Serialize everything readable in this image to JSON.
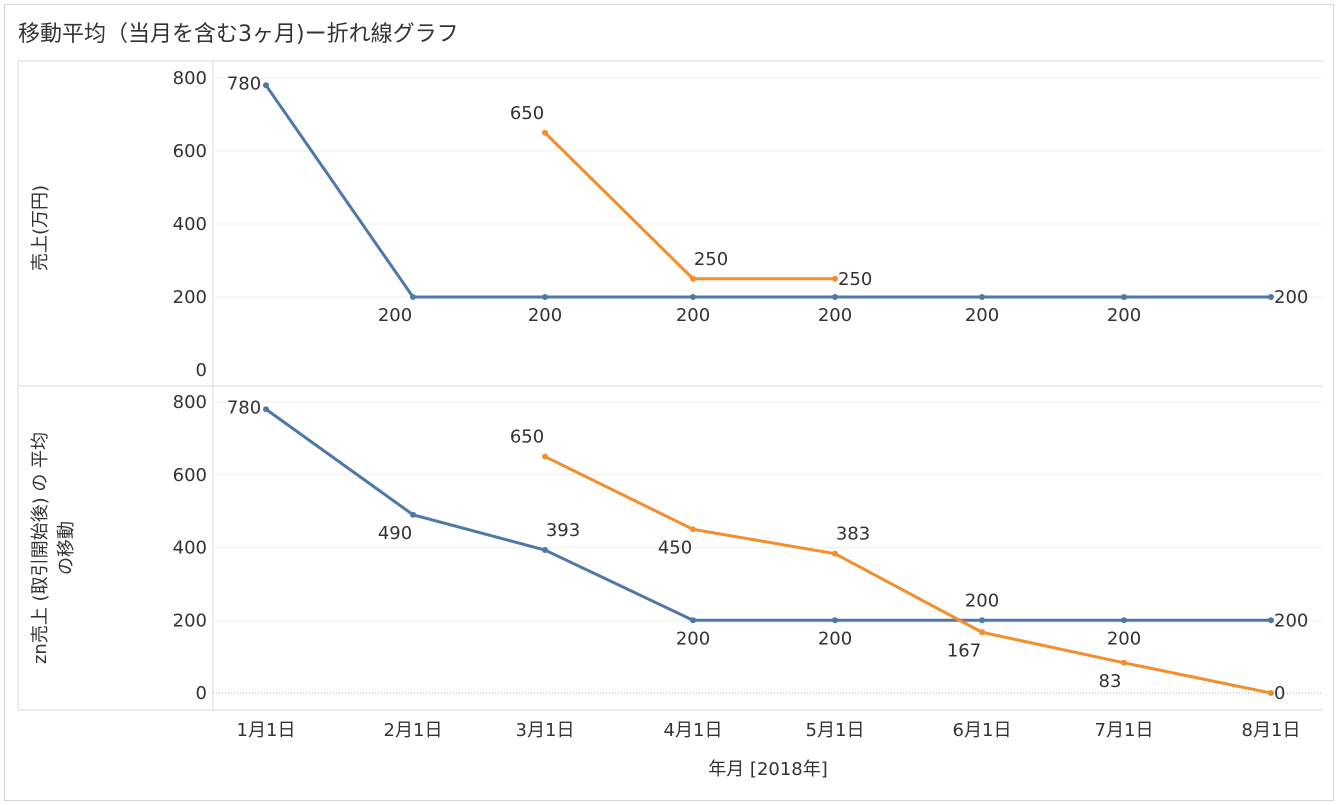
{
  "title": "移動平均（当月を含む3ヶ月)ー折れ線グラフ",
  "colors": {
    "series_blue": "#4e79a7",
    "series_orange": "#f28e2b"
  },
  "chart_data": [
    {
      "type": "line",
      "ylabel": "売上(万円)",
      "ylim": [
        0,
        800
      ],
      "yticks": [
        0,
        200,
        400,
        600,
        800
      ],
      "x": [
        "1月1日",
        "2月1日",
        "3月1日",
        "4月1日",
        "5月1日",
        "6月1日",
        "7月1日",
        "8月1日"
      ],
      "series": [
        {
          "values": [
            780,
            200,
            200,
            200,
            200,
            200,
            200,
            200
          ],
          "labels": [
            "780",
            "200",
            "200",
            "200",
            "200",
            "200",
            "200",
            "200"
          ]
        },
        {
          "values": [
            null,
            null,
            650,
            250,
            250,
            null,
            null,
            null
          ],
          "labels": [
            null,
            null,
            "650",
            "250",
            "250",
            null,
            null,
            null
          ]
        }
      ]
    },
    {
      "type": "line",
      "ylabel_lines": [
        "zn売上 (取引開始後) の 平均",
        "の移動"
      ],
      "ylim": [
        0,
        800
      ],
      "yticks": [
        0,
        200,
        400,
        600,
        800
      ],
      "x": [
        "1月1日",
        "2月1日",
        "3月1日",
        "4月1日",
        "5月1日",
        "6月1日",
        "7月1日",
        "8月1日"
      ],
      "xlabel": "年月 [2018年]",
      "series": [
        {
          "values": [
            780,
            490,
            393,
            200,
            200,
            200,
            200,
            200
          ],
          "labels": [
            "780",
            "490",
            "393",
            "200",
            "200",
            "200",
            "200",
            "200"
          ]
        },
        {
          "values": [
            null,
            null,
            650,
            450,
            383,
            167,
            83,
            0
          ],
          "labels": [
            null,
            null,
            "650",
            "450",
            "383",
            "167",
            "83",
            "0"
          ]
        }
      ]
    }
  ]
}
